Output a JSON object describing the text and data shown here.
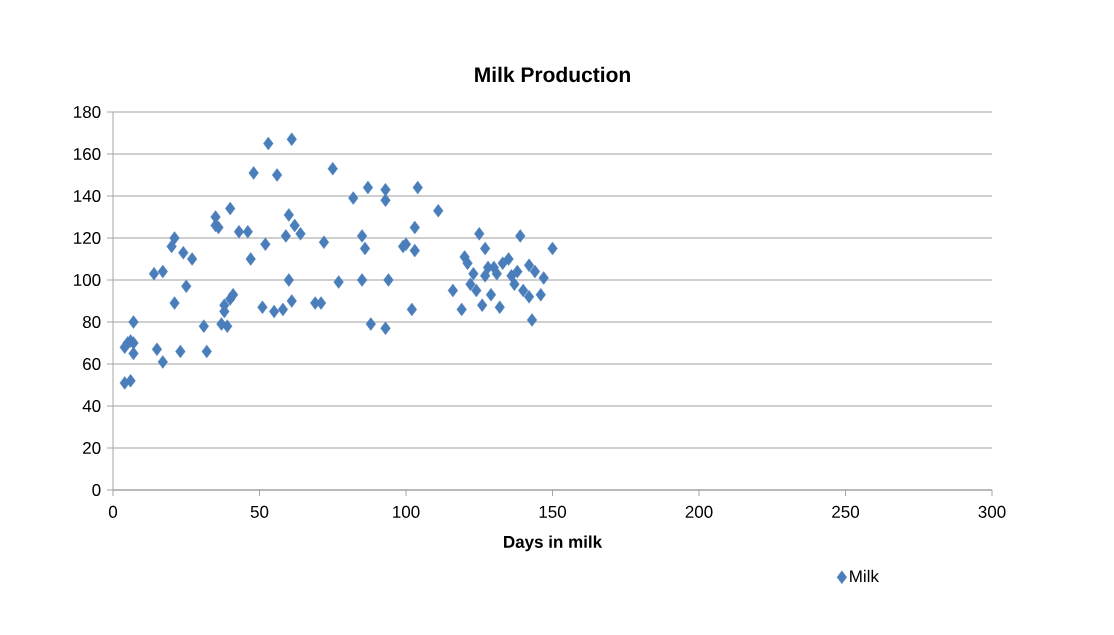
{
  "chart_data": {
    "type": "scatter",
    "title": "Milk Production",
    "xlabel": "Days in milk",
    "xlim": [
      0,
      300
    ],
    "xticks": [
      0,
      50,
      100,
      150,
      200,
      250,
      300
    ],
    "ylim": [
      0,
      180
    ],
    "yticks": [
      0,
      20,
      40,
      60,
      80,
      100,
      120,
      140,
      160,
      180
    ],
    "grid": "y",
    "legend": "bottom right",
    "marker": "diamond",
    "series": [
      {
        "name": "Milk",
        "color": "#4a7ebb",
        "x": [
          4,
          6,
          4,
          5,
          6,
          7,
          7,
          7,
          14,
          15,
          17,
          17,
          20,
          21,
          21,
          23,
          24,
          25,
          27,
          31,
          32,
          35,
          35,
          36,
          37,
          38,
          38,
          39,
          40,
          40,
          41,
          43,
          46,
          47,
          48,
          51,
          52,
          53,
          55,
          56,
          58,
          59,
          60,
          60,
          61,
          61,
          62,
          64,
          69,
          71,
          72,
          75,
          77,
          82,
          85,
          85,
          86,
          87,
          88,
          93,
          93,
          93,
          94,
          99,
          100,
          102,
          103,
          103,
          104,
          111,
          116,
          119,
          120,
          121,
          122,
          123,
          124,
          125,
          126,
          127,
          127,
          128,
          129,
          130,
          131,
          132,
          133,
          135,
          136,
          137,
          138,
          139,
          140,
          142,
          142,
          143,
          144,
          146,
          147,
          150
        ],
        "values": [
          51,
          52,
          68,
          70,
          71,
          65,
          70,
          80,
          103,
          67,
          61,
          104,
          116,
          89,
          120,
          66,
          113,
          97,
          110,
          78,
          66,
          126,
          130,
          125,
          79,
          85,
          88,
          78,
          91,
          134,
          93,
          123,
          123,
          110,
          151,
          87,
          117,
          165,
          85,
          150,
          86,
          121,
          100,
          131,
          167,
          90,
          126,
          122,
          89,
          89,
          118,
          153,
          99,
          139,
          121,
          100,
          115,
          144,
          79,
          143,
          138,
          77,
          100,
          116,
          117,
          86,
          125,
          114,
          144,
          133,
          95,
          86,
          111,
          108,
          98,
          103,
          95,
          122,
          88,
          115,
          102,
          106,
          93,
          106,
          103,
          87,
          108,
          110,
          102,
          98,
          104,
          121,
          95,
          92,
          107,
          81,
          104,
          93,
          101,
          115
        ]
      }
    ]
  }
}
